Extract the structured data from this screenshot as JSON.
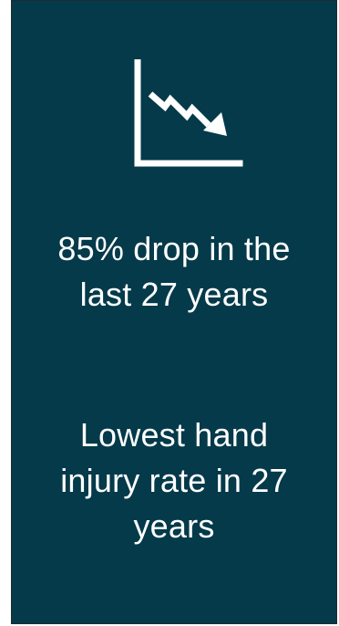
{
  "card": {
    "icon": "declining-chart-icon",
    "background": "#043a4a",
    "stats": [
      {
        "lines": [
          "85% drop in the",
          "last 27 years"
        ]
      },
      {
        "lines": [
          "Lowest hand",
          "injury rate in 27",
          "years"
        ]
      }
    ]
  }
}
